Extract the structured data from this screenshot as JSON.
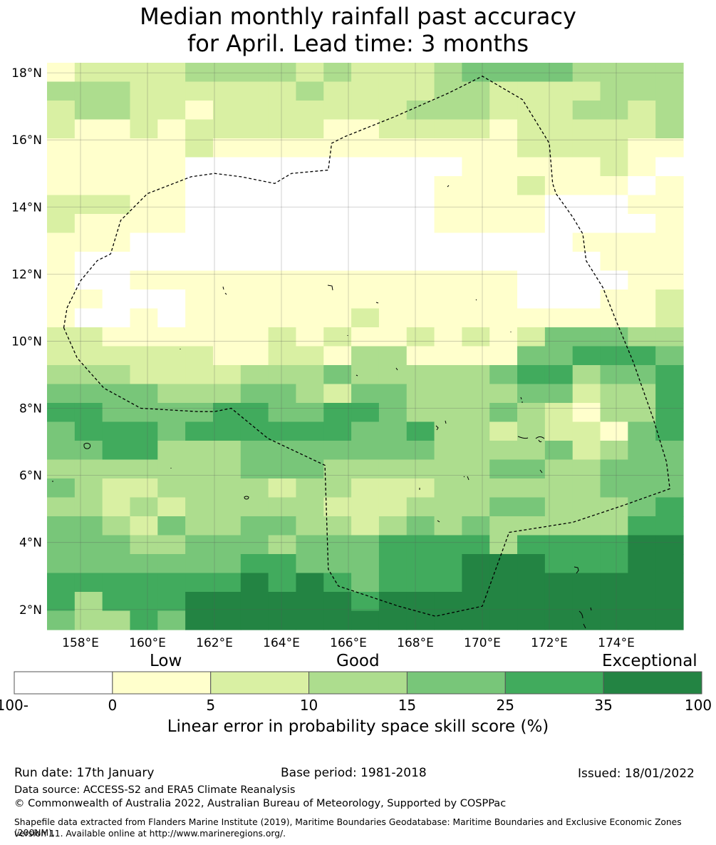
{
  "title_line1": "Median monthly rainfall past accuracy",
  "title_line2": "for April. Lead time: 3 months",
  "map": {
    "lon_range": [
      157,
      176
    ],
    "lat_range": [
      1.4,
      18.3
    ],
    "lat_ticks": [
      {
        "value": 18,
        "label": "18°N"
      },
      {
        "value": 16,
        "label": "16°N"
      },
      {
        "value": 14,
        "label": "14°N"
      },
      {
        "value": 12,
        "label": "12°N"
      },
      {
        "value": 10,
        "label": "10°N"
      },
      {
        "value": 8,
        "label": "8°N"
      },
      {
        "value": 6,
        "label": "6°N"
      },
      {
        "value": 4,
        "label": "4°N"
      },
      {
        "value": 2,
        "label": "2°N"
      }
    ],
    "lon_ticks": [
      {
        "value": 158,
        "label": "158°E"
      },
      {
        "value": 160,
        "label": "160°E"
      },
      {
        "value": 162,
        "label": "162°E"
      },
      {
        "value": 164,
        "label": "164°E"
      },
      {
        "value": 166,
        "label": "166°E"
      },
      {
        "value": 168,
        "label": "168°E"
      },
      {
        "value": 170,
        "label": "170°E"
      },
      {
        "value": 172,
        "label": "172°E"
      },
      {
        "value": 174,
        "label": "174°E"
      }
    ],
    "eez_boundary": [
      [
        157.5,
        10.4
      ],
      [
        157.9,
        9.5
      ],
      [
        158.7,
        8.6
      ],
      [
        159.8,
        8.0
      ],
      [
        161.5,
        7.9
      ],
      [
        162.0,
        7.9
      ],
      [
        162.5,
        8.0
      ],
      [
        163.6,
        7.1
      ],
      [
        165.3,
        6.3
      ],
      [
        165.4,
        3.2
      ],
      [
        165.7,
        2.7
      ],
      [
        167.5,
        2.1
      ],
      [
        168.6,
        1.8
      ],
      [
        170.0,
        2.1
      ],
      [
        170.8,
        4.3
      ],
      [
        172.7,
        4.6
      ],
      [
        174.2,
        5.1
      ],
      [
        175.6,
        5.6
      ],
      [
        175.5,
        6.4
      ],
      [
        175.1,
        7.7
      ],
      [
        174.5,
        9.4
      ],
      [
        174.0,
        10.6
      ],
      [
        173.6,
        11.6
      ],
      [
        173.1,
        12.4
      ],
      [
        173.0,
        13.2
      ],
      [
        172.7,
        13.7
      ],
      [
        172.2,
        14.4
      ],
      [
        172.1,
        14.7
      ],
      [
        172.0,
        15.9
      ],
      [
        171.2,
        17.2
      ],
      [
        170.0,
        17.9
      ],
      [
        169.0,
        17.4
      ],
      [
        167.4,
        16.7
      ],
      [
        165.9,
        16.1
      ],
      [
        165.5,
        15.9
      ],
      [
        165.4,
        15.1
      ],
      [
        164.3,
        15.0
      ],
      [
        163.8,
        14.7
      ],
      [
        162.8,
        14.9
      ],
      [
        162.0,
        15.0
      ],
      [
        161.3,
        14.9
      ],
      [
        160.0,
        14.4
      ],
      [
        159.2,
        13.6
      ],
      [
        158.9,
        12.6
      ],
      [
        158.5,
        12.4
      ],
      [
        158.0,
        11.8
      ],
      [
        157.6,
        11.0
      ],
      [
        157.5,
        10.4
      ]
    ]
  },
  "colorbar": {
    "categories": [
      {
        "label": "Low"
      },
      {
        "label": "Good"
      },
      {
        "label": "Exceptional"
      }
    ],
    "ticks": [
      "-100",
      "0",
      "5",
      "10",
      "15",
      "25",
      "35",
      "100"
    ],
    "bins": [
      {
        "from": -100,
        "to": 0,
        "color": "#ffffff"
      },
      {
        "from": 0,
        "to": 5,
        "color": "#ffffcc"
      },
      {
        "from": 5,
        "to": 10,
        "color": "#d9f0a3"
      },
      {
        "from": 10,
        "to": 15,
        "color": "#addd8e"
      },
      {
        "from": 15,
        "to": 25,
        "color": "#78c679"
      },
      {
        "from": 25,
        "to": 35,
        "color": "#41ab5d"
      },
      {
        "from": 35,
        "to": 100,
        "color": "#238443"
      }
    ],
    "label": "Linear error in probability space skill score (%)"
  },
  "footer": {
    "run_date": "Run date: 17th January",
    "base_period": "Base period: 1981-2018",
    "issued": "Issued: 18/01/2022",
    "data_source": "Data source: ACCESS-S2 and ERA5 Climate Reanalysis",
    "copyright": "© Commonwealth of Australia 2022, Australian Bureau of Meteorology, Supported by COSPPac",
    "shapefile_line1": "Shapefile data extracted from Flanders Marine Institute (2019), Maritime Boundaries Geodatabase: Maritime Boundaries and Exclusive Economic Zones (200NM),",
    "shapefile_line2": "version 11. Available online at http://www.marineregions.org/."
  },
  "grid_rows_desc": "rows top(north) to bottom(south), 23 columns each, class index 0-6",
  "grid": [
    "12222333323222344443333",
    "33322222232222332222333",
    "23322122222223332223323",
    "21121222221122221222223",
    "11111211111111111222211",
    "11111000000000011111210",
    "11111000000000111211101",
    "22211000000000111100011",
    "21111000000000111100001",
    "11100000000000000001111",
    "10000000000000000000111",
    "10011111111111111000011",
    "11000111111111111000112",
    "10010111111211111111112",
    "22111111212112121244433",
    "22222211221331111445554",
    "33322223334333334553445",
    "44443334432443333442335",
    "55444455445543334321335",
    "45554555555445332322145",
    "44553334444444333342344",
    "33333334443333334433444",
    "43223333233222333333444",
    "33232333332223334433345",
    "44324334433234343333355",
    "44433444344455553555566",
    "44444445544455566655566",
    "55555556565455566666666",
    "53555666666566666666666",
    "43354666666666666666666"
  ]
}
